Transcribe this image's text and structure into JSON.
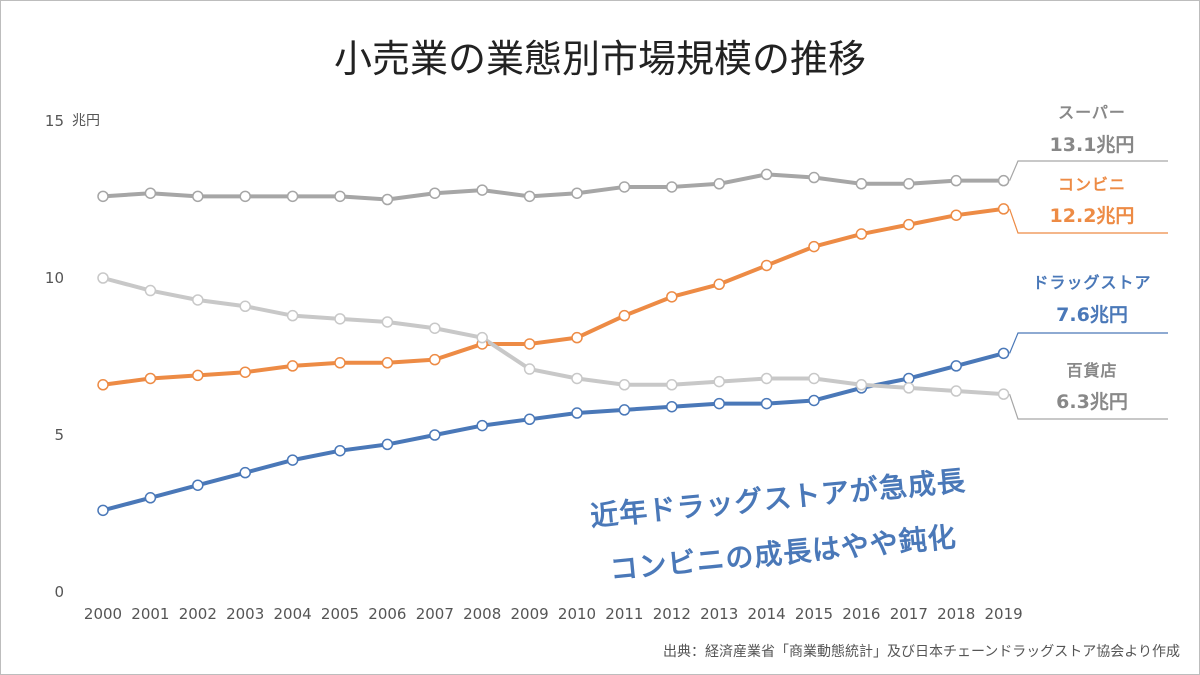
{
  "chart_data": {
    "type": "line",
    "title": "小売業の業態別市場規模の推移",
    "y_unit": "兆円",
    "ylim": [
      0,
      15
    ],
    "y_ticks": [
      "0",
      "5",
      "10",
      "15"
    ],
    "grid": false,
    "x": [
      "2000",
      "2001",
      "2002",
      "2003",
      "2004",
      "2005",
      "2006",
      "2007",
      "2008",
      "2009",
      "2010",
      "2011",
      "2012",
      "2013",
      "2014",
      "2015",
      "2016",
      "2017",
      "2018",
      "2019"
    ],
    "series": [
      {
        "name": "スーパー",
        "end_label": "13.1兆円",
        "color": "#a6a6a6",
        "values": [
          12.6,
          12.7,
          12.6,
          12.6,
          12.6,
          12.6,
          12.5,
          12.7,
          12.8,
          12.6,
          12.7,
          12.9,
          12.9,
          13.0,
          13.3,
          13.2,
          13.0,
          13.0,
          13.1,
          13.1
        ]
      },
      {
        "name": "コンビニ",
        "end_label": "12.2兆円",
        "color": "#ed8b45",
        "values": [
          6.6,
          6.8,
          6.9,
          7.0,
          7.2,
          7.3,
          7.3,
          7.4,
          7.9,
          7.9,
          8.1,
          8.8,
          9.4,
          9.8,
          10.4,
          11.0,
          11.4,
          11.7,
          12.0,
          12.2
        ]
      },
      {
        "name": "ドラッグストア",
        "end_label": "7.6兆円",
        "color": "#4a78b8",
        "values": [
          2.6,
          3.0,
          3.4,
          3.8,
          4.2,
          4.5,
          4.7,
          5.0,
          5.3,
          5.5,
          5.7,
          5.8,
          5.9,
          6.0,
          6.0,
          6.1,
          6.5,
          6.8,
          7.2,
          7.6
        ]
      },
      {
        "name": "百貨店",
        "end_label": "6.3兆円",
        "color": "#c8c8c8",
        "values": [
          10.0,
          9.6,
          9.3,
          9.1,
          8.8,
          8.7,
          8.6,
          8.4,
          8.1,
          7.1,
          6.8,
          6.6,
          6.6,
          6.7,
          6.8,
          6.8,
          6.6,
          6.5,
          6.4,
          6.3
        ]
      }
    ],
    "annotations": [
      "近年ドラッグストアが急成長",
      "コンビニの成長はやや鈍化"
    ],
    "source": "出典：経済産業省「商業動態統計」及び日本チェーンドラッグストア協会より作成"
  }
}
